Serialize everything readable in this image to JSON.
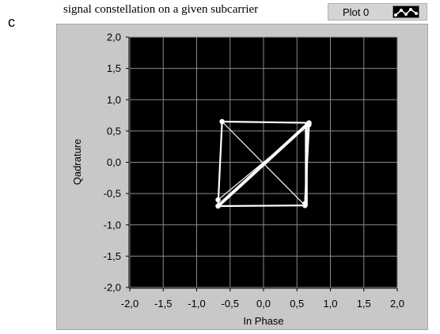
{
  "panel_label": "c",
  "legend": {
    "label": "Plot 0",
    "icon": "plot-line-icon"
  },
  "chart_data": {
    "type": "scatter",
    "title": "signal constellation on a given subcarrier",
    "xlabel": "In Phase",
    "ylabel": "Qadrature",
    "xlim": [
      -2.0,
      2.0
    ],
    "ylim": [
      -2.0,
      2.0
    ],
    "x_ticks": [
      "-2,0",
      "-1,5",
      "-1,0",
      "-0,5",
      "0,0",
      "0,5",
      "1,0",
      "1,5",
      "2,0"
    ],
    "y_ticks": [
      "2,0",
      "1,5",
      "1,0",
      "0,5",
      "0,0",
      "-0,5",
      "-1,0",
      "-1,5",
      "-2,0"
    ],
    "grid": true,
    "background": "#000000",
    "trace_color": "#ffffff",
    "series": [
      {
        "name": "Plot 0",
        "x": [
          -0.62,
          0.68,
          -0.68,
          0.68,
          0.62,
          -0.62,
          -0.68,
          0.62,
          0.62,
          0.68,
          -0.68
        ],
        "y": [
          0.65,
          0.63,
          -0.7,
          0.63,
          -0.69,
          0.65,
          -0.7,
          -0.69,
          -0.66,
          0.6,
          -0.6
        ]
      }
    ]
  }
}
